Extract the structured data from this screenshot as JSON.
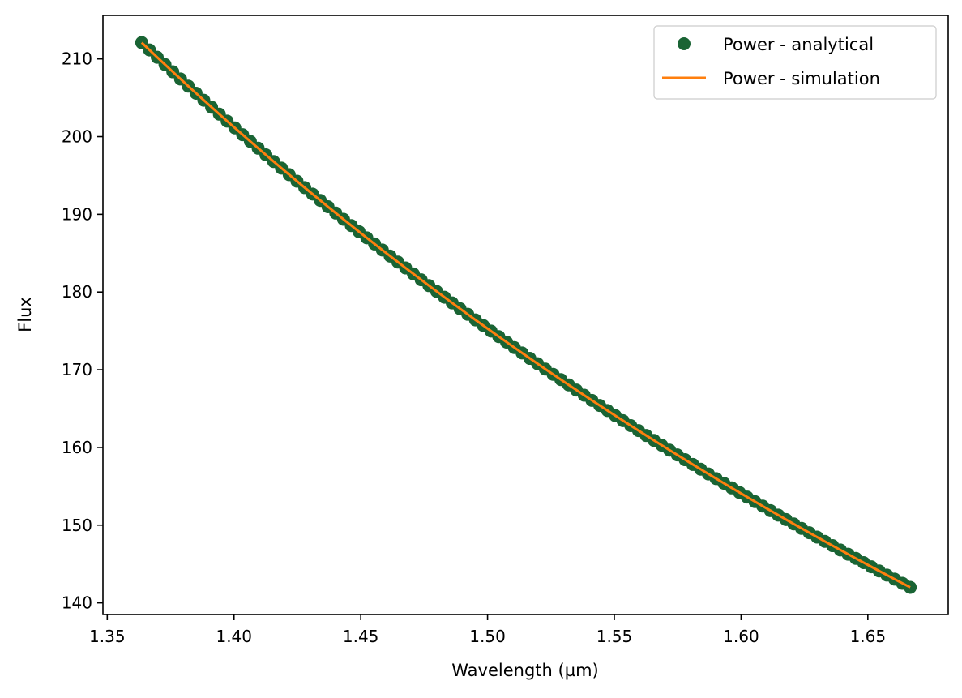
{
  "chart_data": {
    "type": "line",
    "title": "",
    "xlabel": "Wavelength (µm)",
    "ylabel": "Flux",
    "xlim": [
      1.3483,
      1.6817
    ],
    "ylim": [
      138.5,
      215.6
    ],
    "x_ticks": [
      "1.35",
      "1.40",
      "1.45",
      "1.50",
      "1.55",
      "1.60",
      "1.65"
    ],
    "y_ticks": [
      "140",
      "150",
      "160",
      "170",
      "180",
      "190",
      "200",
      "210"
    ],
    "grid": false,
    "legend_position": "upper-right",
    "power_law": {
      "x_min": 1.3636,
      "x_max": 1.6667,
      "y_at_x_min": 212.1,
      "y_at_x_max": 142.0
    },
    "series": [
      {
        "name": "Power - analytical",
        "style": "markers",
        "color": "#1a6434",
        "n_points": 100
      },
      {
        "name": "Power - simulation",
        "style": "line",
        "color": "#ff7f0e"
      }
    ]
  }
}
